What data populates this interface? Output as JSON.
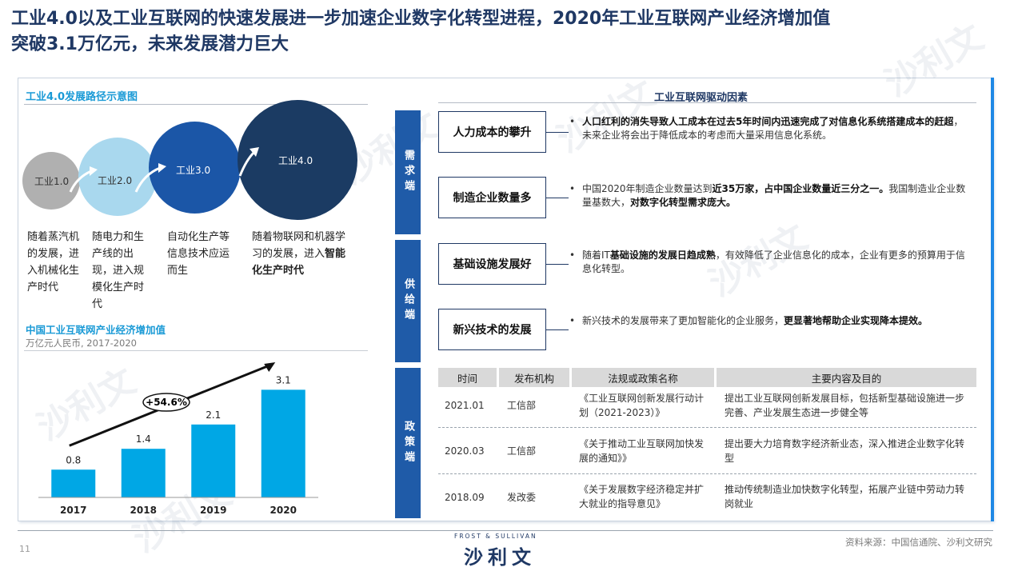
{
  "title": {
    "line1": "工业4.0以及工业互联网的快速发展进一步加速企业数字化转型进程，2020年工业互联网产业经济增加值",
    "line2": "突破3.1万亿元，未来发展潜力巨大"
  },
  "left": {
    "path_title": "工业4.0发展路径示意图",
    "stages": [
      {
        "label": "工业1.0",
        "text": "随着蒸汽机的发展，进入机械化生产时代",
        "color": "#b0b0b0"
      },
      {
        "label": "工业2.0",
        "text": "随电力和生产线的出现，进入规模化生产时代",
        "color": "#a9d8ee"
      },
      {
        "label": "工业3.0",
        "text": "自动化生产等信息技术应运而生",
        "color": "#1b56a7"
      },
      {
        "label": "工业4.0",
        "text_prefix": "随着物联网和机器学习的发展，进入",
        "text_bold": "智能化生产时代",
        "color": "#1b3b63"
      }
    ],
    "chart_title": "中国工业互联网产业经济增加值",
    "chart_subtitle": "万亿元人民币, 2017-2020"
  },
  "chart_data": {
    "type": "bar",
    "categories": [
      "2017",
      "2018",
      "2019",
      "2020"
    ],
    "values": [
      0.8,
      1.4,
      2.1,
      3.1
    ],
    "value_labels": [
      "0.8",
      "1.4",
      "2.1",
      "3.1"
    ],
    "title": "中国工业互联网产业经济增加值",
    "subtitle": "万亿元人民币, 2017-2020",
    "annotation": "+54.6%",
    "ylim": [
      0,
      3.5
    ],
    "bar_color": "#00a7e5",
    "grid": false
  },
  "right": {
    "driver_title": "工业互联网驱动因素",
    "bands": {
      "demand": "需求端",
      "supply": "供给端",
      "policy": "政策端"
    },
    "factors": [
      {
        "label": "人力成本的攀升",
        "bold": "人口红利的消失导致人工成本在过去5年时间内迅速完成了对信息化系统搭建成本的赶超",
        "rest": "，未来企业将会出于降低成本的考虑而大量采用信息化系统。"
      },
      {
        "label": "制造企业数量多",
        "p1": "中国2020年制造企业数量达到",
        "b1": "近35万家，占中国企业数量近三分之一。",
        "p2": "我国制造业企业数量基数大，",
        "b2": "对数字化转型需求庞大。"
      },
      {
        "label": "基础设施发展好",
        "p1": "随着IT",
        "b1": "基础设施的发展日趋成熟",
        "p2": "，有效降低了企业信息化的成本，企业有更多的预算用于信息化转型。"
      },
      {
        "label": "新兴技术的发展",
        "p1": "新兴技术的发展带来了更加智能化的企业服务，",
        "b1": "更显著地帮助企业实现降本提效。"
      }
    ],
    "bullet_char": "•",
    "table": {
      "headers": [
        "时间",
        "发布机构",
        "法规或政策名称",
        "主要内容及目的"
      ],
      "rows": [
        {
          "date": "2021.01",
          "org": "工信部",
          "name": "《工业互联网创新发展行动计划（2021-2023）》",
          "content": "提出工业互联网创新发展目标，包括新型基础设施进一步完善、产业发展生态进一步健全等"
        },
        {
          "date": "2020.03",
          "org": "工信部",
          "name": "《关于推动工业互联网加快发展的通知》》",
          "content": "提出要大力培育数字经济新业态，深入推进企业数字化转型"
        },
        {
          "date": "2018.09",
          "org": "发改委",
          "name": "《关于发展数字经济稳定并扩大就业的指导意见》",
          "content": "推动传统制造业加快数字化转型，拓展产业链中劳动力转岗就业"
        }
      ]
    }
  },
  "footer": {
    "page": "11",
    "source": "资料来源：中国信通院、沙利文研究",
    "logo_small": "FROST & SULLIVAN",
    "logo_main": "沙利文"
  },
  "watermark": {
    "text": "沙利文",
    "sub": "FROST & SULLIVAN"
  }
}
